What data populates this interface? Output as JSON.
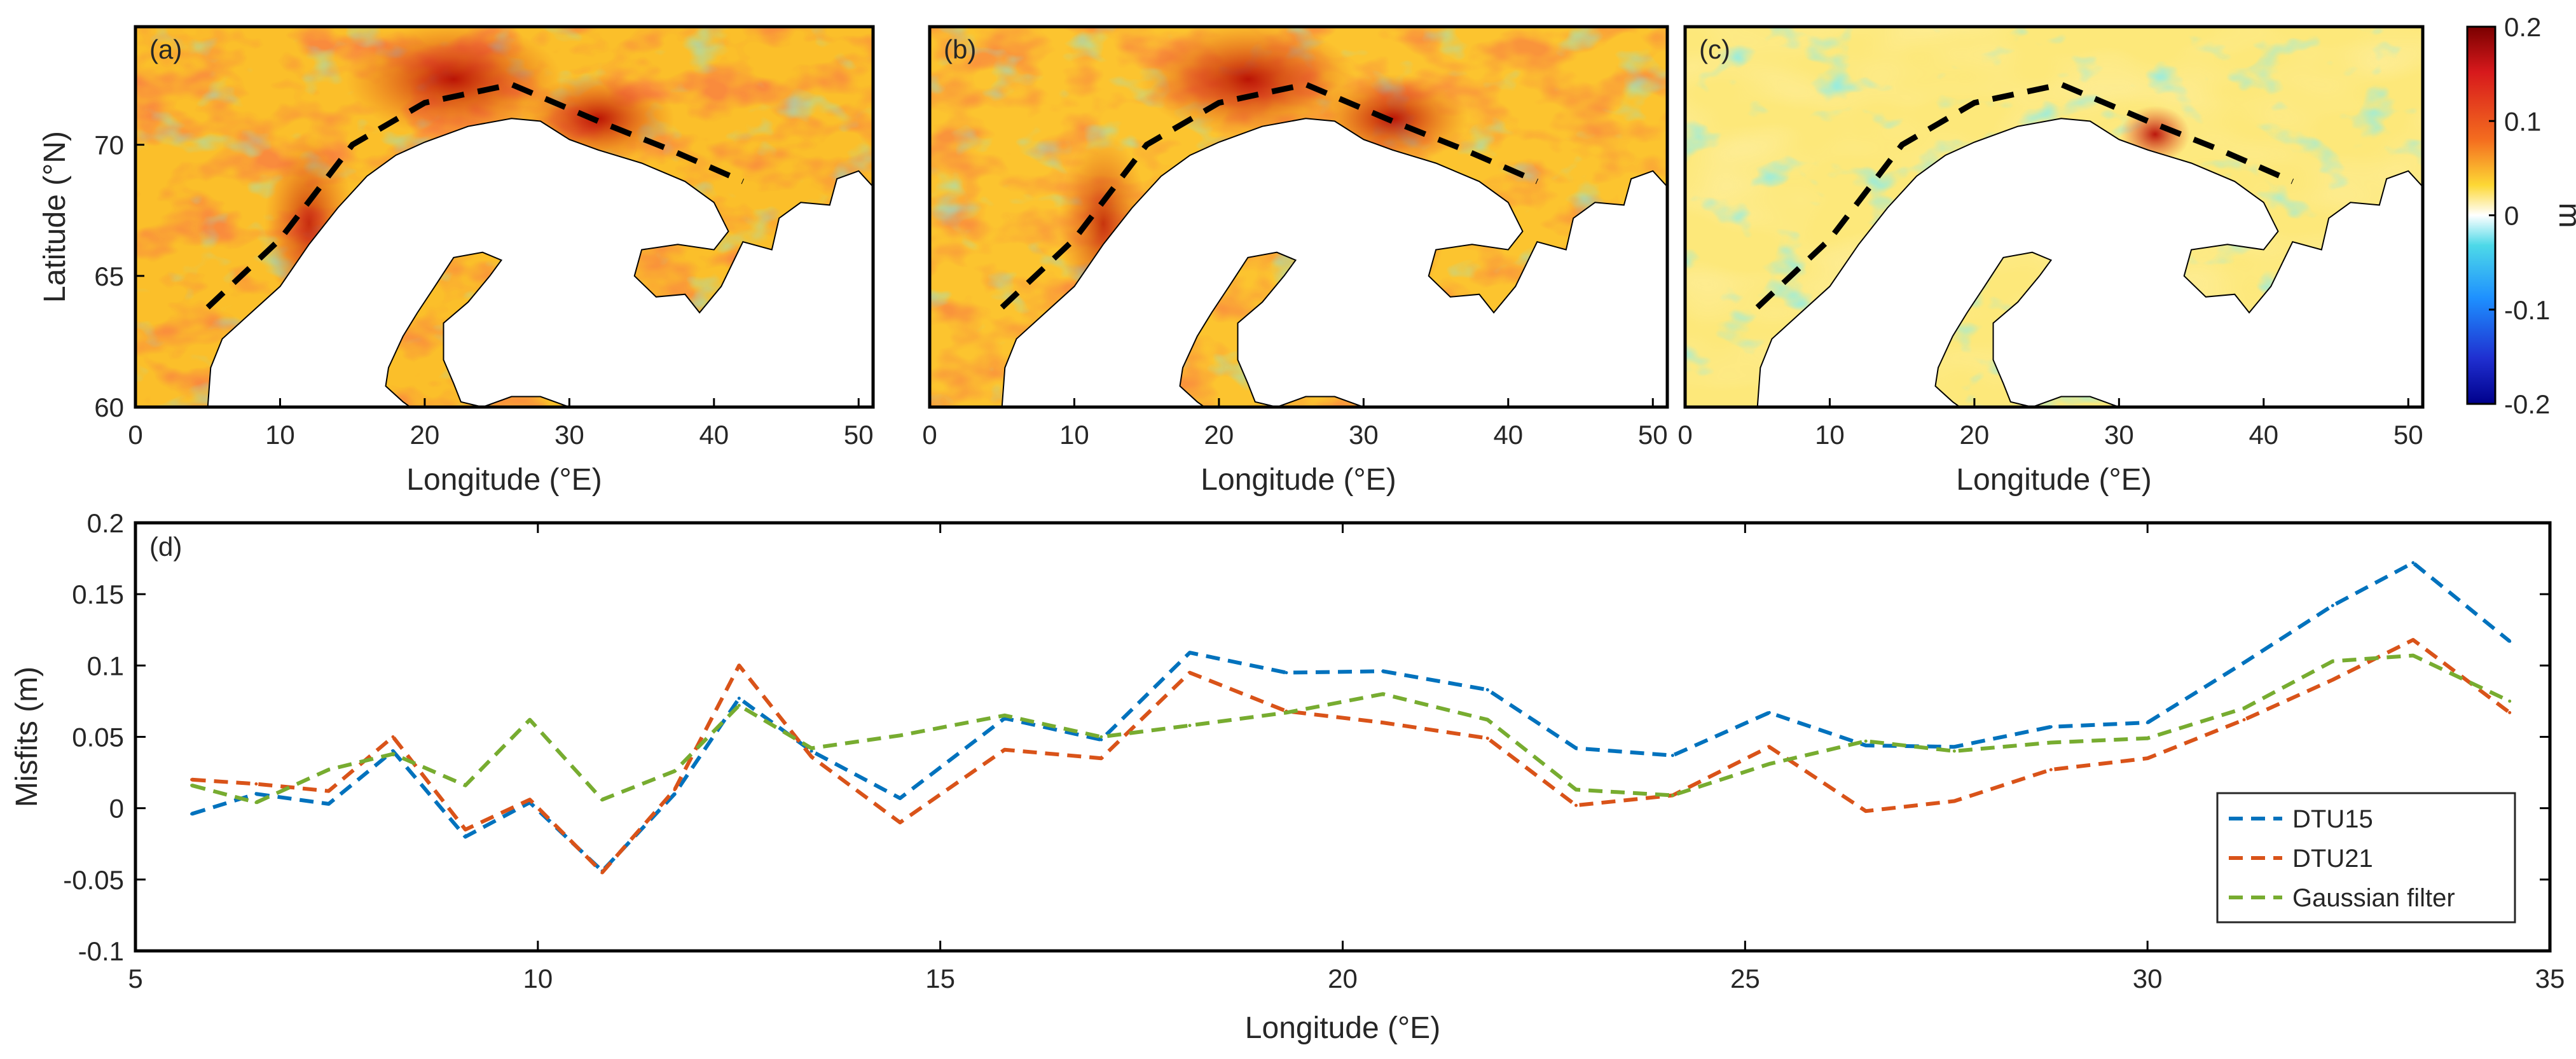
{
  "colors": {
    "DTU15": "#0072BD",
    "DTU21": "#D95319",
    "Gaussian filter": "#77AC30",
    "land": "#ffffff",
    "coast": "#000000",
    "track": "#000000"
  },
  "maps": {
    "panels": [
      "(a)",
      "(b)",
      "(c)"
    ],
    "xlabel": "Longitude (°E)",
    "ylabel": "Latitude (°N)",
    "xticks": [
      0,
      10,
      20,
      30,
      40,
      50
    ],
    "yticks": [
      60,
      65,
      70
    ],
    "xlim": [
      0,
      51
    ],
    "ylim": [
      60,
      74.5
    ],
    "track_line": {
      "lon": [
        5,
        10,
        15,
        20,
        26,
        32,
        37,
        42
      ],
      "lat": [
        63.8,
        66.4,
        70.0,
        71.6,
        72.3,
        70.9,
        69.8,
        68.6
      ]
    }
  },
  "colorbar": {
    "ticks": [
      "0.2",
      "0.1",
      "0",
      "-0.1",
      "-0.2"
    ],
    "unit": "m",
    "range": [
      -0.2,
      0.2
    ]
  },
  "chart_data": {
    "type": "line",
    "panel": "(d)",
    "title": "",
    "xlabel": "Longitude (°E)",
    "ylabel": "Misfits (m)",
    "xlim": [
      5,
      35
    ],
    "ylim": [
      -0.1,
      0.2
    ],
    "xticks": [
      "5",
      "10",
      "15",
      "20",
      "25",
      "30",
      "35"
    ],
    "yticks": [
      "0.2",
      "0.15",
      "0.1",
      "0.05",
      "0",
      "-0.05",
      "-0.1"
    ],
    "x": [
      5.7,
      6.5,
      7.4,
      8.2,
      9.1,
      9.9,
      10.8,
      11.7,
      12.5,
      13.4,
      14.5,
      15.8,
      17.0,
      18.1,
      19.3,
      20.5,
      21.8,
      22.9,
      24.1,
      25.3,
      26.5,
      27.6,
      28.8,
      30.0,
      31.2,
      32.3,
      33.3,
      34.5
    ],
    "series": [
      {
        "name": "DTU15",
        "values": [
          -0.004,
          0.01,
          0.003,
          0.04,
          -0.02,
          0.004,
          -0.044,
          0.01,
          0.077,
          0.04,
          0.007,
          0.063,
          0.048,
          0.109,
          0.095,
          0.096,
          0.083,
          0.042,
          0.037,
          0.067,
          0.044,
          0.043,
          0.057,
          0.06,
          0.102,
          0.142,
          0.172,
          0.117
        ]
      },
      {
        "name": "DTU21",
        "values": [
          0.02,
          0.017,
          0.012,
          0.05,
          -0.015,
          0.006,
          -0.045,
          0.013,
          0.1,
          0.036,
          -0.01,
          0.041,
          0.035,
          0.095,
          0.068,
          0.06,
          0.049,
          0.002,
          0.009,
          0.043,
          -0.002,
          0.005,
          0.027,
          0.035,
          0.062,
          0.09,
          0.118,
          0.067
        ]
      },
      {
        "name": "Gaussian filter",
        "values": [
          0.016,
          0.004,
          0.027,
          0.038,
          0.016,
          0.062,
          0.006,
          0.026,
          0.072,
          0.042,
          0.051,
          0.065,
          0.05,
          0.058,
          0.067,
          0.08,
          0.062,
          0.013,
          0.009,
          0.031,
          0.047,
          0.04,
          0.046,
          0.049,
          0.07,
          0.103,
          0.107,
          0.075
        ]
      }
    ],
    "legend": [
      "DTU15",
      "DTU21",
      "Gaussian filter"
    ],
    "legend_position": "bottom-right"
  }
}
